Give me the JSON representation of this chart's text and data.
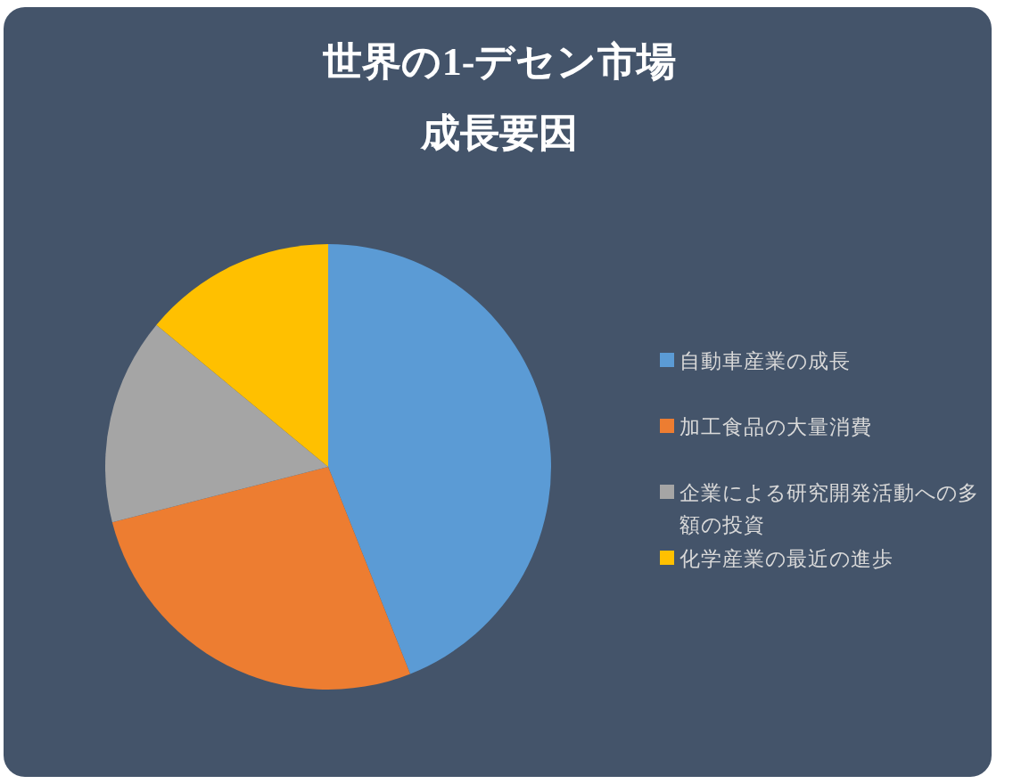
{
  "chart_data": {
    "type": "pie",
    "title": "世界の1-デセン市場",
    "subtitle": "成長要因",
    "categories": [
      "自動車産業の成長",
      "加工食品の大量消費",
      "企業による研究開発活動への多額の投資",
      "化学産業の最近の進歩"
    ],
    "values": [
      44,
      27,
      15,
      14
    ],
    "colors": [
      "#5b9bd5",
      "#ed7d31",
      "#a5a5a5",
      "#ffc000"
    ],
    "legend": "right"
  }
}
